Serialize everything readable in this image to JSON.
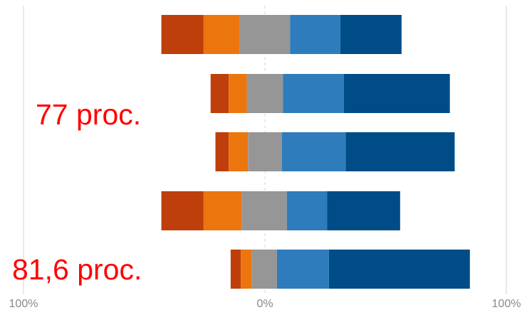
{
  "chart_data": {
    "type": "bar",
    "orientation": "horizontal",
    "stacked": true,
    "diverging": true,
    "title": "",
    "xlabel": "",
    "ylabel": "",
    "xlim": [
      -100,
      100
    ],
    "x_ticks": [
      -100,
      0,
      100
    ],
    "x_tick_labels": [
      "100%",
      "0%",
      "100%"
    ],
    "grid": true,
    "legend": "none",
    "categories": [
      "",
      "",
      "",
      "",
      ""
    ],
    "segment_colors": [
      "#BE3F0B",
      "#EC760E",
      "#969696",
      "#2E7CBB",
      "#004C87"
    ],
    "rows": [
      [
        -42.9,
        -25.4,
        -10.6,
        10.4,
        31.2,
        56.6
      ],
      [
        -22.5,
        -15.0,
        -7.5,
        7.5,
        32.7,
        76.6
      ],
      [
        -20.5,
        -15.0,
        -7.0,
        7.0,
        33.5,
        78.6
      ],
      [
        -42.9,
        -25.4,
        -9.7,
        9.1,
        25.8,
        56.0
      ],
      [
        -14.2,
        -10.0,
        -5.4,
        5.0,
        26.5,
        84.9
      ]
    ]
  },
  "annotations": [
    {
      "text": "77 proc.",
      "color": "#FF0000"
    },
    {
      "text": "81,6 proc.",
      "color": "#FF0000"
    }
  ]
}
